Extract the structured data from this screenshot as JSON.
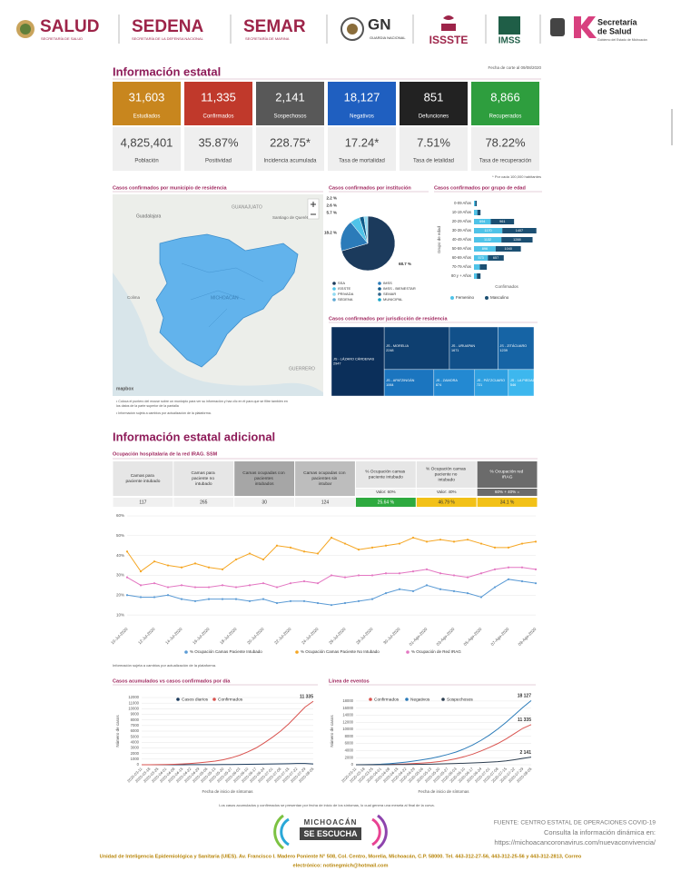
{
  "header": {
    "logos": [
      "SALUD",
      "SEDENA",
      "SEMAR",
      "GN",
      "ISSSTE",
      "IMSS"
    ],
    "logo_subtitles": [
      "SECRETARÍA DE SALUD",
      "SECRETARÍA DE LA DEFENSA NACIONAL",
      "SECRETARÍA DE MARINA",
      "GUARDIA NACIONAL"
    ],
    "state_logo": [
      "Secretaría",
      "de Salud"
    ],
    "state_subtitle": "Gobierno del Estado de Michoacán"
  },
  "summary": {
    "title": "Información estatal",
    "date": "Fecha de corte al 09/08/2020",
    "cards": [
      {
        "value": "31,603",
        "label": "Estudiados",
        "color": "#c8861e"
      },
      {
        "value": "11,335",
        "label": "Confirmados",
        "color": "#c0392b"
      },
      {
        "value": "2,141",
        "label": "Sospechosos",
        "color": "#585858"
      },
      {
        "value": "18,127",
        "label": "Negativos",
        "color": "#1f5fc0"
      },
      {
        "value": "851",
        "label": "Defunciones",
        "color": "#222222"
      },
      {
        "value": "8,866",
        "label": "Recuperados",
        "color": "#2e9e3e"
      }
    ],
    "rates": [
      {
        "value": "4,825,401",
        "label": "Población"
      },
      {
        "value": "35.87%",
        "label": "Positividad"
      },
      {
        "value": "228.75*",
        "label": "Incidencia acumulada"
      },
      {
        "value": "17.24*",
        "label": "Tasa de mortalidad"
      },
      {
        "value": "7.51%",
        "label": "Tasa de letalidad"
      },
      {
        "value": "78.22%",
        "label": "Tasa de recuperación"
      }
    ],
    "footnote": "* Por cada 100,000 habitantes"
  },
  "map": {
    "title": "Casos confirmados por municipio de residencia",
    "labels": [
      "Guadalajara",
      "GUANAJUATO",
      "Santiago de Querétaro",
      "MICHOACÁN",
      "GUERRERO",
      "Colima"
    ],
    "attribution": "mapbox",
    "notes": [
      "• Coloca el puntero del mouse sobre un municipio para ver su información y haz clic en él para que se filtre también en los datos de la parte superior de la pantalla",
      "• Información sujeta a cambios por actualización de la plataforma."
    ]
  },
  "additional": {
    "title": "Información estatal adicional",
    "subtitle": "Ocupación hospitalaria de la red IRAG. SSM"
  },
  "table": {
    "headers": [
      "Camas para paciente intubado",
      "Camas para paciente no intubado",
      "Camas ocupadas con pacientes intubados",
      "Camas ocupadas con pacientes sin intubar",
      "% Ocupación camas paciente intubado",
      "% Ocupación camas paciente no intubado",
      "% Ocupación red IRAG"
    ],
    "weights": [
      "Valor: 60%",
      "Valor: 40%",
      "60% + 40% ="
    ],
    "values": [
      "117",
      "265",
      "30",
      "124",
      "25.64 %",
      "46.79 %",
      "34.1 %"
    ],
    "value_colors": [
      "#2eaa3f",
      "#f2c118",
      "#f2c118"
    ]
  },
  "line_note": "Información sujeta a cambios por actualización de la plataforma.",
  "cumulative_note": "Los casos acumulados y confirmados se presentan por fecha de inicio de los síntomas, lo cual genera una meseta al final de la curva.",
  "footer": {
    "brand": [
      "MICHOACÁN",
      "SE ESCUCHA"
    ],
    "source": "FUENTE: CENTRO ESTATAL DE OPERACIONES COVID-19",
    "consult": "Consulta la información dinámica en:",
    "url": "https://michoacancoronavirus.com/nuevaconvivencia/",
    "address_lines": [
      "Unidad de Inteligencia Epidemiológica y Sanitaria (UIES). Av. Francisco I. Madero Poniente N° 508, Col. Centro, Morelia, Michoacán, C.P. 58000. Tel. 443-312-27-56, 443-312-25-56 y 443-312-2813, Correo",
      "electrónico: notinegmich@hotmail.com"
    ]
  },
  "chart_data": [
    {
      "type": "pie",
      "title": "Casos confirmados por institución",
      "values": [
        68.7,
        18.2,
        5.7,
        2.6,
        2.2
      ],
      "value_labels": [
        "68.7 %",
        "18.2 %",
        "5.7 %",
        "2.6 %",
        "2.2 %"
      ],
      "colors": [
        "#1b3a5c",
        "#2b7bb9",
        "#4fc3e8",
        "#0e5a8a",
        "#8fdaf2"
      ],
      "legend": [
        {
          "name": "SSA",
          "color": "#1b3a5c"
        },
        {
          "name": "IMSS",
          "color": "#2b7bb9"
        },
        {
          "name": "ISSSTE",
          "color": "#4fc3e8"
        },
        {
          "name": "IMSS - BIENESTAR",
          "color": "#0e5a8a"
        },
        {
          "name": "PRIVADA",
          "color": "#8fdaf2"
        },
        {
          "name": "SEMAR",
          "color": "#33658a"
        },
        {
          "name": "SEDENA",
          "color": "#5fa8d3"
        },
        {
          "name": "MUNICIPAL",
          "color": "#16a6c9"
        }
      ]
    },
    {
      "type": "pyramid",
      "title": "Casos confirmados por grupo de edad",
      "y_label": "Grupo de edad",
      "x_label": "Confirmados",
      "categories": [
        "0-09 Años",
        "10-19 Años",
        "20-29 Años",
        "30-39 Años",
        "40-49 Años",
        "50-59 Años",
        "60-69 Años",
        "70-79 Años",
        "80 y + Años"
      ],
      "series": [
        {
          "name": "Femenino",
          "color": "#4fc3e8",
          "values": [
            55,
            140,
            694,
            1170,
            1132,
            896,
            573,
            240,
            120
          ]
        },
        {
          "name": "Masculino",
          "color": "#1b4f72",
          "values": [
            60,
            130,
            961,
            1407,
            1288,
            1040,
            657,
            290,
            150
          ]
        }
      ],
      "xlim": [
        0,
        2700
      ]
    },
    {
      "type": "treemap",
      "title": "Casos confirmados por jurisdicción de residencia",
      "categories": [
        "JS - LÁZARO CÁRDENAS",
        "JS - MORELIA",
        "JS - URUAPAN",
        "JS - ZITÁCUARO",
        "JS - APATZINGÁN",
        "JS - ZAMORA",
        "JS - PÁTZCUARO",
        "JS - LA PIEDAD"
      ],
      "values": [
        2947,
        2248,
        1671,
        1239,
        1064,
        874,
        721,
        546
      ],
      "colors": [
        "#0b2f5a",
        "#0e3f70",
        "#11508a",
        "#1664a5",
        "#1b75bf",
        "#2389d2",
        "#2e9fe0",
        "#3db7ee"
      ]
    },
    {
      "type": "line",
      "categories": [
        "10-Jul-2020",
        null,
        "12-Jul-2020",
        null,
        "14-Jul-2020",
        null,
        "16-Jul-2020",
        null,
        "18-Jul-2020",
        null,
        "20-Jul-2020",
        null,
        "22-Jul-2020",
        null,
        "24-Jul-2020",
        null,
        "26-Jul-2020",
        null,
        "28-Jul-2020",
        null,
        "30-Jul-2020",
        null,
        "01-Ago-2020",
        null,
        "03-Ago-2020",
        null,
        "05-Ago-2020",
        null,
        "07-Ago-2020",
        null,
        "09-Ago-2020"
      ],
      "series": [
        {
          "name": "% Ocupación Camas Paciente Intubado",
          "color": "#5b9bd5",
          "values": [
            20,
            19,
            19,
            20,
            18,
            17,
            18,
            18,
            18,
            17,
            18,
            16,
            17,
            17,
            16,
            15,
            16,
            17,
            18,
            21,
            23,
            22,
            25,
            23,
            22,
            21,
            19,
            24,
            28,
            27,
            26
          ]
        },
        {
          "name": "% Ocupación Camas Paciente No Intubado",
          "color": "#f5a623",
          "values": [
            42,
            32,
            37,
            35,
            34,
            36,
            34,
            33,
            38,
            41,
            38,
            45,
            44,
            42,
            41,
            49,
            46,
            43,
            44,
            45,
            46,
            49,
            47,
            48,
            47,
            48,
            46,
            44,
            44,
            46,
            47
          ]
        },
        {
          "name": "% Ocupación de Red IRAG",
          "color": "#e377c2",
          "values": [
            29,
            25,
            26,
            24,
            25,
            24,
            24,
            25,
            24,
            25,
            26,
            24,
            26,
            27,
            26,
            30,
            29,
            30,
            30,
            31,
            31,
            32,
            33,
            31,
            30,
            29,
            31,
            33,
            34,
            34,
            33
          ]
        }
      ],
      "ylim": [
        5,
        60
      ],
      "yticks": [
        {
          "value": 10,
          "label": "10%"
        },
        {
          "value": 20,
          "label": "20%"
        },
        {
          "value": 30,
          "label": "30%"
        },
        {
          "value": 40,
          "label": "40%"
        },
        {
          "value": 50,
          "label": "50%"
        },
        {
          "value": 60,
          "label": "60%"
        }
      ],
      "markers": true,
      "grid": true
    },
    {
      "type": "line",
      "title": "Casos acumulados vs casos confirmados por día",
      "x_label": "Fecha de inicio de síntomas",
      "y_label": "Número de casos",
      "categories": [
        "2020-03-11",
        "2020-03-18",
        "2020-03-25",
        "2020-04-01",
        "2020-04-08",
        "2020-04-15",
        "2020-04-22",
        "2020-04-29",
        "2020-05-06",
        "2020-05-13",
        "2020-05-20",
        "2020-05-27",
        "2020-06-03",
        "2020-06-10",
        "2020-06-17",
        "2020-06-24",
        "2020-07-01",
        "2020-07-08",
        "2020-07-15",
        "2020-07-22",
        "2020-07-29",
        "2020-08-05"
      ],
      "series": [
        {
          "name": "Casos diarios",
          "color": "#1b3a5c",
          "values": [
            0,
            1,
            3,
            5,
            7,
            9,
            12,
            16,
            20,
            25,
            36,
            50,
            64,
            86,
            100,
            129,
            143,
            157,
            186,
            214,
            214,
            150
          ]
        },
        {
          "name": "Confirmados",
          "color": "#d9534f",
          "values": [
            1,
            5,
            20,
            50,
            90,
            150,
            230,
            340,
            480,
            650,
            900,
            1250,
            1700,
            2300,
            3000,
            3900,
            4900,
            6000,
            7300,
            8800,
            10300,
            11335
          ],
          "value_labels": [
            null,
            null,
            null,
            null,
            null,
            null,
            null,
            null,
            null,
            null,
            null,
            null,
            null,
            null,
            null,
            null,
            null,
            null,
            null,
            null,
            null,
            "11 335"
          ]
        }
      ],
      "ylim": [
        0,
        12000
      ],
      "yticks": [
        0,
        1000,
        2000,
        3000,
        4000,
        5000,
        6000,
        7000,
        8000,
        9000,
        10000,
        11000,
        12000
      ],
      "grid": true
    },
    {
      "type": "line",
      "title": "Línea de eventos",
      "x_label": "Fecha de inicio de síntomas",
      "y_label": "Número de casos",
      "categories": [
        "2020-03-11",
        "2020-03-18",
        "2020-03-25",
        "2020-04-01",
        "2020-04-08",
        "2020-04-15",
        "2020-04-22",
        "2020-04-29",
        "2020-05-06",
        "2020-05-13",
        "2020-05-20",
        "2020-05-27",
        "2020-06-03",
        "2020-06-10",
        "2020-06-17",
        "2020-06-24",
        "2020-07-01",
        "2020-07-08",
        "2020-07-15",
        "2020-07-22",
        "2020-07-29",
        "2020-08-05"
      ],
      "series": [
        {
          "name": "Confirmados",
          "color": "#d9534f",
          "values": [
            1,
            5,
            20,
            50,
            90,
            150,
            230,
            340,
            480,
            650,
            900,
            1250,
            1700,
            2300,
            3000,
            3900,
            4900,
            6000,
            7300,
            8800,
            10300,
            11335
          ],
          "value_labels": [
            null,
            null,
            null,
            null,
            null,
            null,
            null,
            null,
            null,
            null,
            null,
            null,
            null,
            null,
            null,
            null,
            null,
            null,
            null,
            null,
            null,
            "11 335"
          ]
        },
        {
          "name": "Negativos",
          "color": "#2b7bb9",
          "values": [
            5,
            20,
            60,
            150,
            300,
            500,
            750,
            1050,
            1400,
            1800,
            2300,
            2900,
            3600,
            4500,
            5600,
            6900,
            8400,
            10100,
            12000,
            14100,
            16200,
            18127
          ],
          "value_labels": [
            null,
            null,
            null,
            null,
            null,
            null,
            null,
            null,
            null,
            null,
            null,
            null,
            null,
            null,
            null,
            null,
            null,
            null,
            null,
            null,
            null,
            "18 127"
          ]
        },
        {
          "name": "Sospechosos",
          "color": "#2d3e50",
          "values": [
            2,
            5,
            10,
            20,
            30,
            50,
            70,
            100,
            130,
            170,
            220,
            280,
            350,
            430,
            520,
            620,
            740,
            880,
            1100,
            1400,
            1800,
            2141
          ],
          "value_labels": [
            null,
            null,
            null,
            null,
            null,
            null,
            null,
            null,
            null,
            null,
            null,
            null,
            null,
            null,
            null,
            null,
            null,
            null,
            null,
            null,
            null,
            "2 141"
          ]
        }
      ],
      "ylim": [
        0,
        19000
      ],
      "yticks": [
        0,
        2000,
        4000,
        6000,
        8000,
        10000,
        12000,
        14000,
        16000,
        18000
      ],
      "grid": true
    }
  ]
}
